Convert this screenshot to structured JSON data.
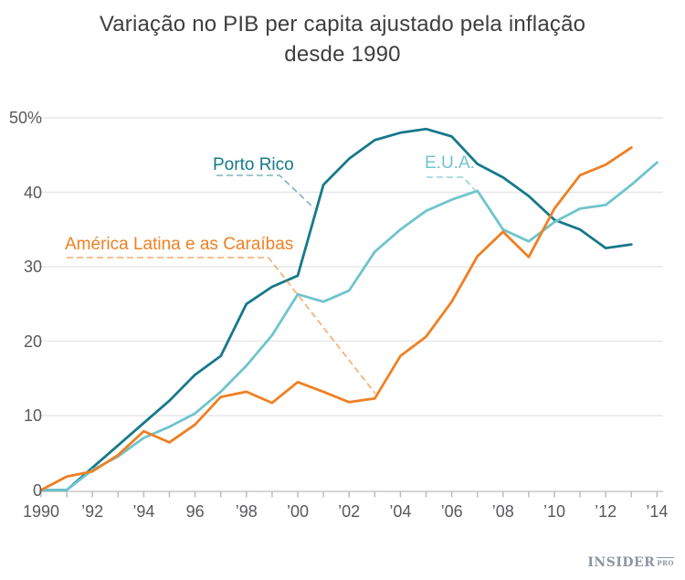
{
  "title": {
    "line1": "Variação no PIB per capita ajustado pela inflação",
    "line2": "desde 1990"
  },
  "chart_data": {
    "type": "line",
    "title": "Variação no PIB per capita ajustado pela inflação desde 1990",
    "x": [
      1990,
      1991,
      1992,
      1993,
      1994,
      1995,
      1996,
      1997,
      1998,
      1999,
      2000,
      2001,
      2002,
      2003,
      2004,
      2005,
      2006,
      2007,
      2008,
      2009,
      2010,
      2011,
      2012,
      2013,
      2014
    ],
    "x_tick_label_years": [
      1990,
      1992,
      1994,
      1996,
      1998,
      2000,
      2002,
      2004,
      2006,
      2008,
      2010,
      2012,
      2014
    ],
    "x_tick_labels": [
      "1990",
      "’92",
      "’94",
      "96",
      "’98",
      "’00",
      "’02",
      "’04",
      "’06",
      "’08",
      "’10",
      "’12",
      "’14"
    ],
    "y_ticks": [
      0,
      10,
      20,
      30,
      40,
      50
    ],
    "y_tick_labels": [
      "0",
      "10",
      "20",
      "30",
      "40",
      "50%"
    ],
    "ylim": [
      0,
      50
    ],
    "grid": "horizontal",
    "legend": "inline-callouts",
    "unit": "%",
    "series": [
      {
        "name": "Porto Rico",
        "color": "#16798a",
        "values": [
          0,
          0,
          3,
          6,
          9,
          12,
          15.5,
          18,
          25,
          27.3,
          28.8,
          41,
          44.5,
          47,
          48,
          48.5,
          47.5,
          43.8,
          42,
          39.5,
          36.3,
          35,
          32.5,
          33,
          null
        ]
      },
      {
        "name": "E.U.A.",
        "color": "#6fc4cd",
        "values": [
          0,
          0,
          2.7,
          4.5,
          7,
          8.5,
          10.3,
          13.2,
          16.7,
          20.8,
          26.3,
          25.3,
          26.8,
          32,
          35,
          37.5,
          39,
          40.2,
          35,
          33.4,
          36,
          37.8,
          38.3,
          41,
          44
        ]
      },
      {
        "name": "América Latina e as Caraíbas",
        "color": "#ee8023",
        "values": [
          0,
          1.8,
          2.5,
          4.7,
          7.9,
          6.4,
          8.8,
          12.5,
          13.2,
          11.7,
          14.5,
          13.2,
          11.8,
          12.3,
          18,
          20.6,
          25.3,
          31.4,
          34.7,
          31.3,
          37.8,
          42.3,
          43.7,
          46,
          null
        ]
      }
    ]
  },
  "logo": {
    "main": "INSIDER",
    "sub": "PRO"
  }
}
